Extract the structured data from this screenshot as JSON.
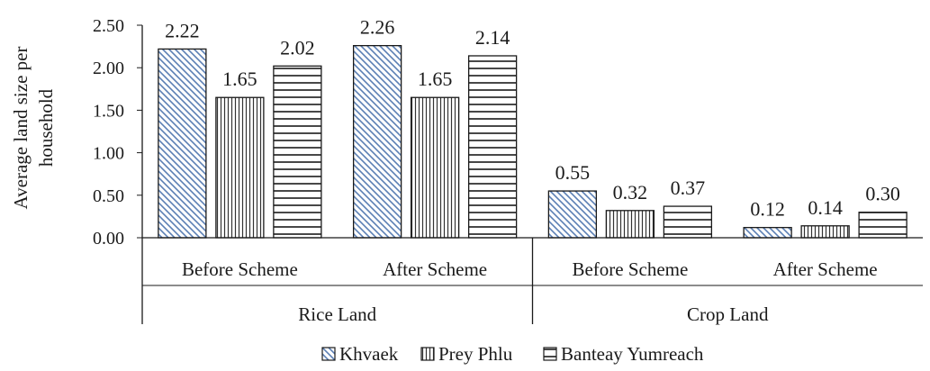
{
  "chart_data": {
    "type": "bar",
    "ylabel": [
      "Average  land size per",
      "household"
    ],
    "ylim": [
      0,
      2.5
    ],
    "yticks": [
      "0.00",
      "0.50",
      "1.00",
      "1.50",
      "2.00",
      "2.50"
    ],
    "ytick_values": [
      0,
      0.5,
      1.0,
      1.5,
      2.0,
      2.5
    ],
    "grid": false,
    "legend_position": "bottom",
    "outer_categories": [
      "Rice Land",
      "Crop Land"
    ],
    "categories": [
      "Before Scheme",
      "After Scheme",
      "Before Scheme",
      "After Scheme"
    ],
    "series": [
      {
        "name": "Khvaek",
        "pattern": "diagonal-hatch",
        "values": [
          2.22,
          2.26,
          0.55,
          0.12
        ],
        "labels": [
          "2.22",
          "2.26",
          "0.55",
          "0.12"
        ]
      },
      {
        "name": "Prey Phlu",
        "pattern": "vertical-hatch",
        "values": [
          1.65,
          1.65,
          0.32,
          0.14
        ],
        "labels": [
          "1.65",
          "1.65",
          "0.32",
          "0.14"
        ]
      },
      {
        "name": "Banteay Yumreach",
        "pattern": "horizontal-hatch",
        "values": [
          2.02,
          2.14,
          0.37,
          0.3
        ],
        "labels": [
          "2.02",
          "2.14",
          "0.37",
          "0.30"
        ]
      }
    ],
    "colors": {
      "diagonal": "#5b7fb4",
      "bars_stroke": "#1a1a1a",
      "axis": "#1a1a1a"
    }
  }
}
